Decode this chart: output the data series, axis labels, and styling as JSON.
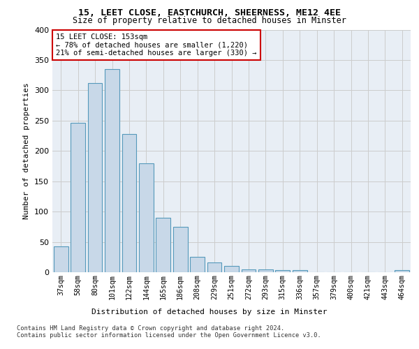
{
  "title1": "15, LEET CLOSE, EASTCHURCH, SHEERNESS, ME12 4EE",
  "title2": "Size of property relative to detached houses in Minster",
  "xlabel": "Distribution of detached houses by size in Minster",
  "ylabel": "Number of detached properties",
  "categories": [
    "37sqm",
    "58sqm",
    "80sqm",
    "101sqm",
    "122sqm",
    "144sqm",
    "165sqm",
    "186sqm",
    "208sqm",
    "229sqm",
    "251sqm",
    "272sqm",
    "293sqm",
    "315sqm",
    "336sqm",
    "357sqm",
    "379sqm",
    "400sqm",
    "421sqm",
    "443sqm",
    "464sqm"
  ],
  "values": [
    43,
    246,
    312,
    335,
    228,
    180,
    90,
    75,
    25,
    16,
    10,
    5,
    5,
    4,
    3,
    0,
    0,
    0,
    0,
    0,
    3
  ],
  "bar_color": "#c8d8e8",
  "bar_edge_color": "#5599bb",
  "annotation_text": "15 LEET CLOSE: 153sqm\n← 78% of detached houses are smaller (1,220)\n21% of semi-detached houses are larger (330) →",
  "annotation_box_color": "#ffffff",
  "annotation_box_edge": "#cc0000",
  "footer1": "Contains HM Land Registry data © Crown copyright and database right 2024.",
  "footer2": "Contains public sector information licensed under the Open Government Licence v3.0.",
  "ylim": [
    0,
    400
  ],
  "yticks": [
    0,
    50,
    100,
    150,
    200,
    250,
    300,
    350,
    400
  ],
  "grid_color": "#cccccc",
  "bg_color": "#e8eef5"
}
